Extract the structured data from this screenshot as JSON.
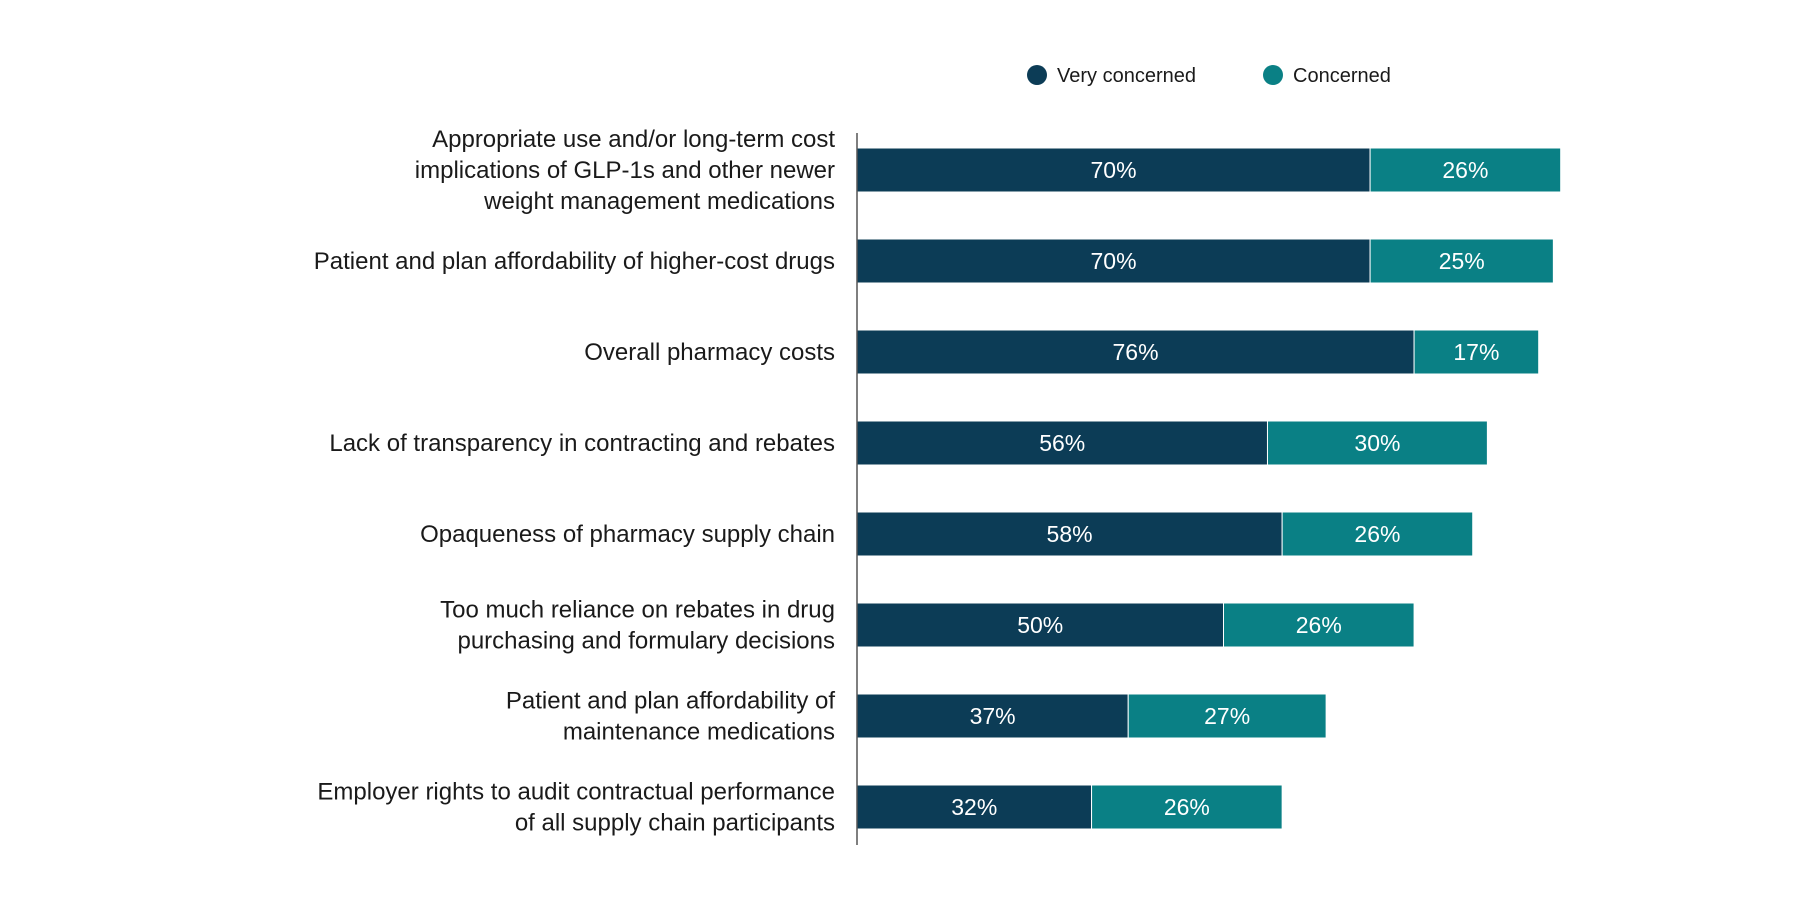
{
  "colors": {
    "very_concerned": "#0c3c56",
    "concerned": "#0a8085",
    "axis": "#555555",
    "text": "#1a1a1a",
    "value_text": "#ffffff"
  },
  "legend": {
    "items": [
      {
        "label": "Very concerned",
        "color": "#0c3c56",
        "icon": "circle-marker"
      },
      {
        "label": "Concerned",
        "color": "#0a8085",
        "icon": "circle-marker"
      }
    ]
  },
  "chart_data": {
    "type": "bar",
    "orientation": "horizontal",
    "stacked": true,
    "categories": [
      [
        "Appropriate use and/or long-term cost",
        "implications of GLP-1s and other newer",
        "weight management medications"
      ],
      [
        "Patient and plan affordability of higher-cost drugs"
      ],
      [
        "Overall pharmacy costs"
      ],
      [
        "Lack of transparency in contracting and rebates"
      ],
      [
        "Opaqueness of pharmacy supply chain"
      ],
      [
        "Too much reliance on rebates in drug",
        "purchasing and formulary decisions"
      ],
      [
        "Patient and plan affordability of",
        "maintenance medications"
      ],
      [
        "Employer rights to audit contractual performance",
        "of all supply chain participants"
      ]
    ],
    "series": [
      {
        "name": "Very concerned",
        "values": [
          70,
          70,
          76,
          56,
          58,
          50,
          37,
          32
        ],
        "labels": [
          "70%",
          "70%",
          "76%",
          "56%",
          "58%",
          "50%",
          "37%",
          "32%"
        ]
      },
      {
        "name": "Concerned",
        "values": [
          26,
          25,
          17,
          30,
          26,
          26,
          27,
          26
        ],
        "labels": [
          "26%",
          "25%",
          "17%",
          "30%",
          "26%",
          "26%",
          "27%",
          "26%"
        ]
      }
    ],
    "xlim": [
      0,
      100
    ],
    "title": "",
    "xlabel": "",
    "ylabel": "",
    "grid": false,
    "legend_position": "top-right"
  }
}
